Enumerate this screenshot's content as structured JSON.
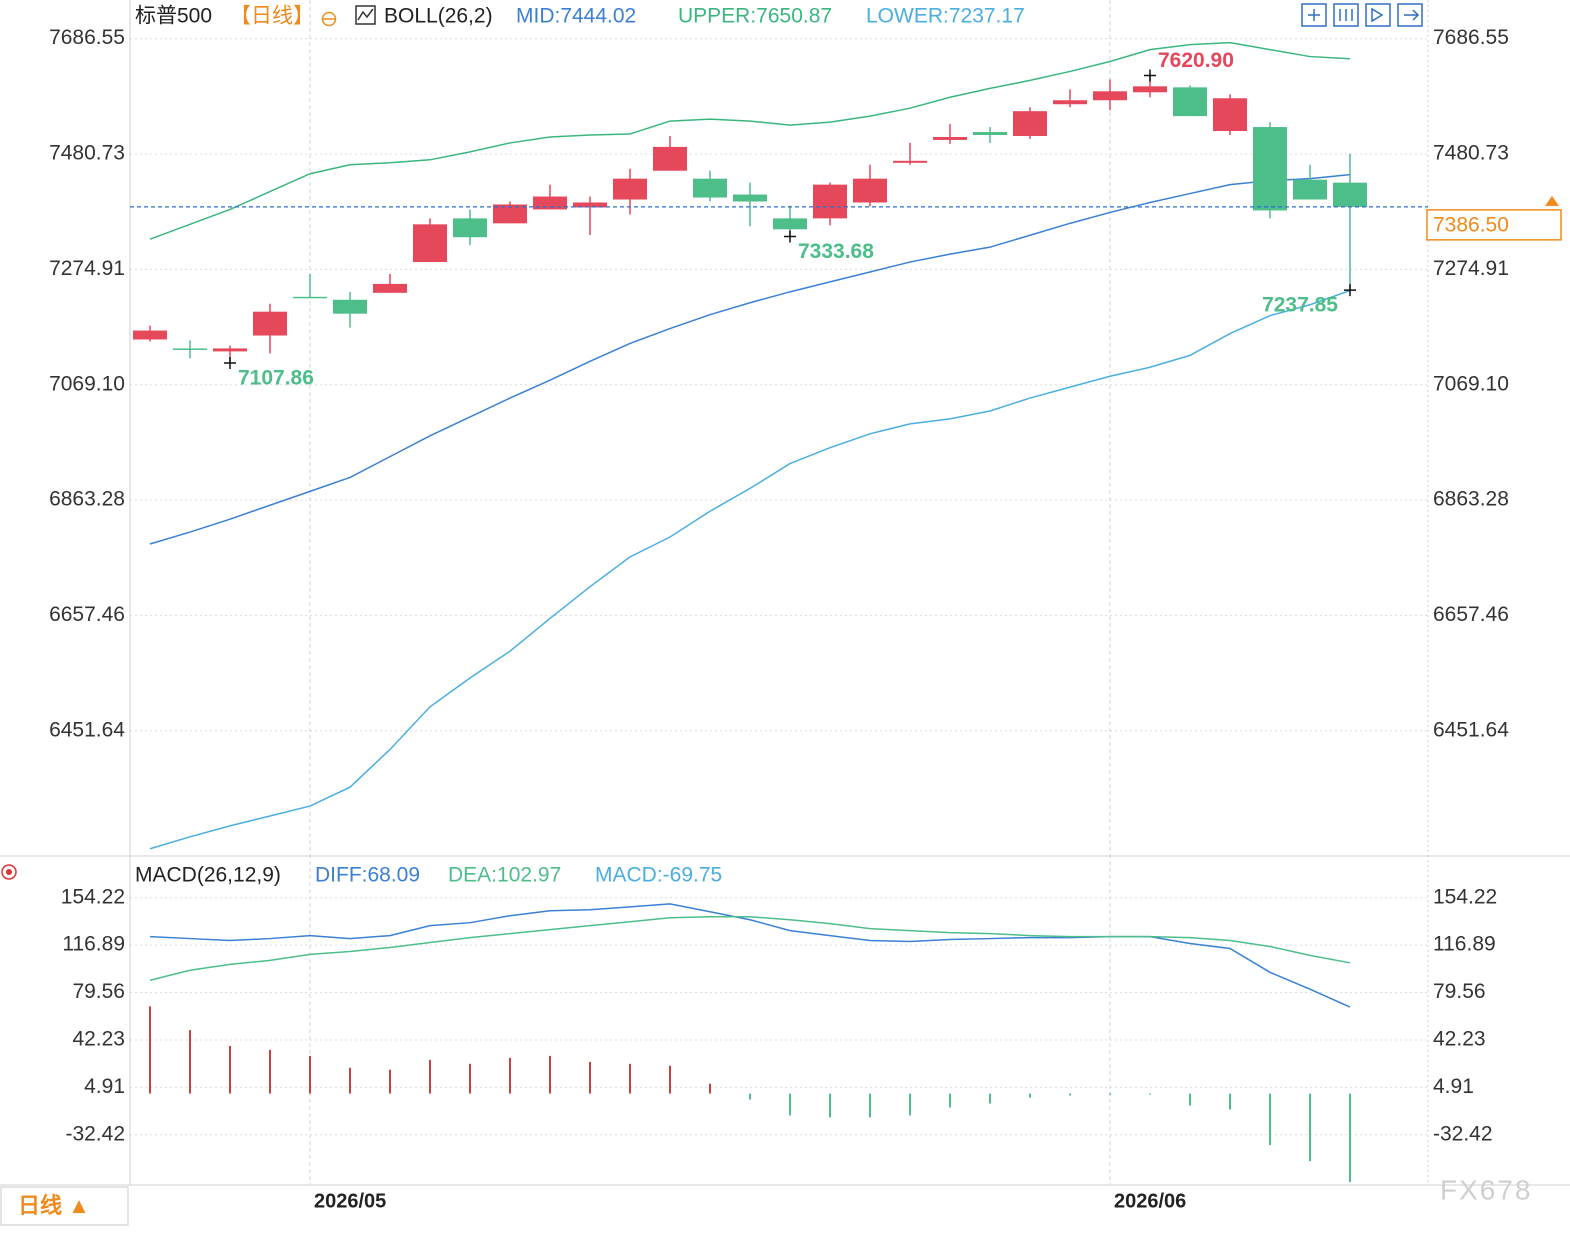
{
  "chart_data": [
    {
      "type": "candlestick",
      "title": "标普500",
      "period": "【日线】",
      "indicator": "BOLL(26,2)",
      "categories": [
        null,
        null,
        null,
        null,
        "2026/05",
        null,
        null,
        null,
        null,
        null,
        null,
        null,
        null,
        null,
        null,
        null,
        null,
        null,
        null,
        null,
        null,
        null,
        null,
        null,
        "2026/06",
        null,
        null,
        null,
        null,
        null,
        null
      ],
      "open": [
        7149.85,
        7133.9,
        7128.59,
        7156.93,
        7226.01,
        7220.7,
        7233.1,
        7288.01,
        7365.94,
        7357.09,
        7381.89,
        7385.43,
        7399.6,
        7450.97,
        7436.8,
        7408.46,
        7365.94,
        7365.94,
        7394.28,
        7465.14,
        7505.88,
        7520.05,
        7512.96,
        7569.64,
        7576.73,
        7590.9,
        7599.76,
        7521.82,
        7528.9,
        7435.02,
        7429.71
      ],
      "high": [
        7174.64,
        7148.07,
        7139.22,
        7213.61,
        7266.75,
        7234.87,
        7266.75,
        7365.94,
        7381.89,
        7396.06,
        7426.17,
        7404.91,
        7454.51,
        7512.96,
        7450.97,
        7429.71,
        7388.97,
        7429.71,
        7461.59,
        7500.56,
        7534.22,
        7528.9,
        7564.33,
        7596.21,
        7613.93,
        7620.9,
        7603.3,
        7587.36,
        7537.76,
        7461.59,
        7481.08
      ],
      "low": [
        7146.3,
        7116.19,
        7107.86,
        7125.05,
        7224.24,
        7171.1,
        7233.1,
        7288.01,
        7318.12,
        7357.09,
        7381.89,
        7336.2,
        7373.03,
        7450.97,
        7396.06,
        7351.77,
        7333.68,
        7353.54,
        7387.2,
        7461.59,
        7498.79,
        7500.56,
        7507.65,
        7564.33,
        7559.02,
        7582.04,
        7548.39,
        7514.73,
        7365.94,
        7399.6,
        7237.85
      ],
      "close": [
        7165.79,
        7132.13,
        7133.9,
        7199.44,
        7224.24,
        7195.9,
        7249.04,
        7355.32,
        7332.29,
        7390.74,
        7404.91,
        7394.28,
        7436.8,
        7493.48,
        7403.14,
        7396.06,
        7346.46,
        7426.17,
        7436.8,
        7468.68,
        7511.19,
        7514.73,
        7557.24,
        7576.73,
        7592.67,
        7601.53,
        7548.39,
        7580.27,
        7380.11,
        7399.6,
        7386.5
      ],
      "up_color": "#e5475b",
      "down_color": "#4dbd8a",
      "series": [
        {
          "name": "MID:7444.02",
          "color": "#3a80d4",
          "values": [
            6784.96,
            6806.21,
            6829.24,
            6854.04,
            6878.84,
            6903.63,
            6940.83,
            6978.03,
            7011.68,
            7045.34,
            7077.22,
            7110.88,
            7142.76,
            7169.33,
            7194.13,
            7215.38,
            7234.87,
            7252.58,
            7270.29,
            7288.01,
            7302.18,
            7314.58,
            7335.83,
            7357.09,
            7376.57,
            7394.28,
            7410.23,
            7426.17,
            7433.25,
            7436.8,
            7444.02
          ]
        },
        {
          "name": "UPPER:7650.87",
          "color": "#3cb67e",
          "values": [
            7328.75,
            7355.32,
            7381.89,
            7413.77,
            7445.65,
            7461.59,
            7465.14,
            7470.45,
            7484.62,
            7500.56,
            7511.19,
            7514.73,
            7516.5,
            7539.53,
            7543.07,
            7539.53,
            7532.45,
            7537.76,
            7548.39,
            7562.56,
            7582.04,
            7597.98,
            7612.15,
            7628.1,
            7645.81,
            7667.06,
            7675.92,
            7679.46,
            7667.06,
            7654.67,
            7650.87
          ]
        },
        {
          "name": "LOWER:7237.17",
          "color": "#4aaee0",
          "values": [
            6241.17,
            6262.42,
            6281.91,
            6299.62,
            6317.33,
            6350.99,
            6418.3,
            6494.46,
            6545.83,
            6593.66,
            6652.11,
            6708.79,
            6761.93,
            6797.36,
            6843.41,
            6884.15,
            6928.43,
            6956.77,
            6981.57,
            6999.28,
            7008.14,
            7022.31,
            7045.34,
            7064.82,
            7084.31,
            7100.25,
            7121.5,
            7160.47,
            7192.36,
            7211.84,
            7237.17
          ]
        }
      ],
      "extreme_labels": [
        {
          "value": 7107.86,
          "label": "7107.86"
        },
        {
          "value": 7333.68,
          "label": "7333.68"
        },
        {
          "value": 7620.9,
          "label": "7620.90"
        },
        {
          "value": 7237.85,
          "label": "7237.85"
        }
      ],
      "last_price": {
        "value": 7386.5,
        "label": "7386.50"
      },
      "ylim": [
        6230,
        7755.6
      ],
      "yticks": [
        6451.64,
        6657.46,
        6863.28,
        {
          "value": 7069.1,
          "label": "7069.10"
        },
        7274.91,
        7480.73,
        7686.55
      ],
      "grid": true
    },
    {
      "type": "line",
      "title": "MACD(26,12,9)",
      "series": [
        {
          "name": "DIFF:68.09",
          "type": "line",
          "color": "#3a80d4",
          "values": [
            123.62,
            122.06,
            120.5,
            122.06,
            124.41,
            122.06,
            124.41,
            132.22,
            134.56,
            140.03,
            143.93,
            144.71,
            147.05,
            149.4,
            143.15,
            136.9,
            128.31,
            124.41,
            120.5,
            119.72,
            121.28,
            122.06,
            122.84,
            122.84,
            123.62,
            123.62,
            118.16,
            114.25,
            95.51,
            82.23,
            68.09
          ]
        },
        {
          "name": "DEA:102.97",
          "type": "line",
          "color": "#4dbd8a",
          "values": [
            89.26,
            97.07,
            101.76,
            104.88,
            109.57,
            111.91,
            115.03,
            118.94,
            122.84,
            125.97,
            129.09,
            132.22,
            135.34,
            138.46,
            139.24,
            139.24,
            136.9,
            133.78,
            129.87,
            128.31,
            126.75,
            125.97,
            124.41,
            123.62,
            123.62,
            123.62,
            122.84,
            120.5,
            115.81,
            108.79,
            102.97
          ]
        },
        {
          "name": "MACD:-69.75",
          "type": "bar",
          "color": "#4aaee0",
          "up_color": "#c9413f",
          "down_color": "#4dbd8a",
          "values": [
            68.72,
            49.98,
            37.48,
            34.36,
            29.68,
            20.3,
            18.76,
            26.56,
            23.44,
            28.12,
            29.68,
            24.98,
            23.42,
            21.88,
            7.82,
            -4.68,
            -17.18,
            -18.74,
            -18.74,
            -17.18,
            -10.94,
            -7.82,
            -3.14,
            -1.56,
            -1.0,
            -0.8,
            -9.36,
            -12.5,
            -40.6,
            -53.12,
            -69.75
          ]
        }
      ],
      "ylim": [
        -72,
        185.5
      ],
      "yticks": [
        -32.42,
        4.91,
        42.23,
        79.56,
        116.89,
        154.22
      ],
      "grid": true
    }
  ],
  "footer": {
    "period_button": "日线 ▲",
    "watermark": "FX678"
  }
}
